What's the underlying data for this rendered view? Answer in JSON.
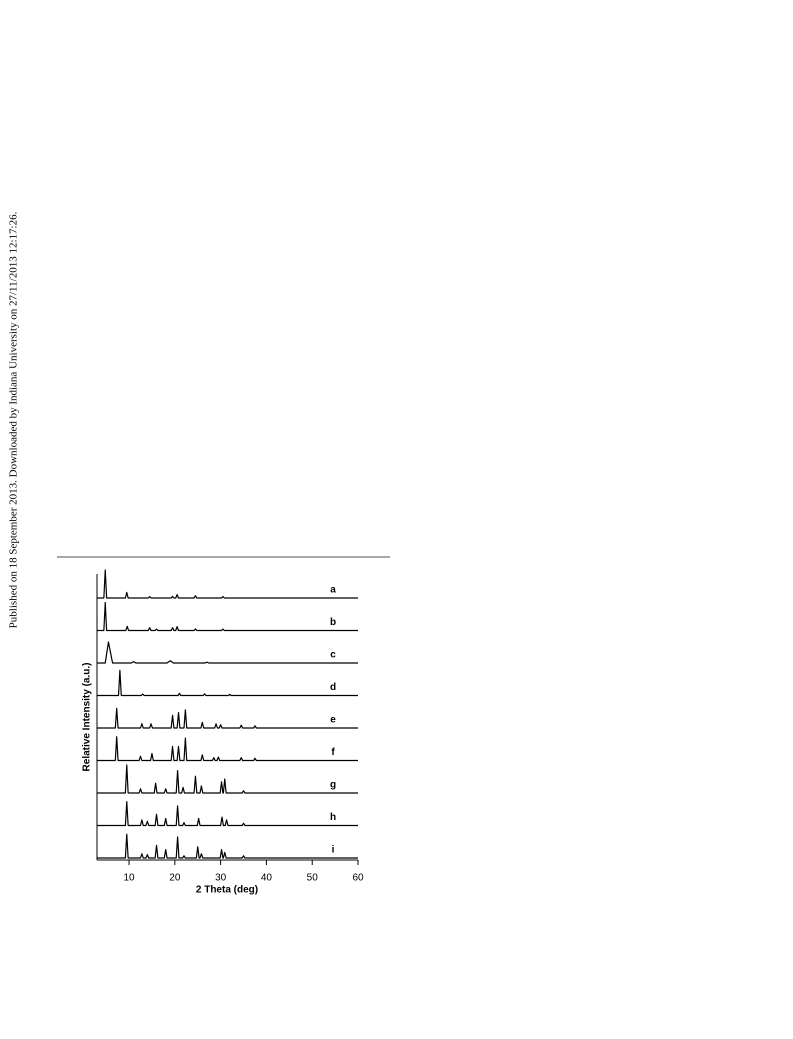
{
  "side_note": "Published on 18 September 2013. Downloaded by Indiana University on 27/11/2013 12:17:26.",
  "chart_data": {
    "type": "line",
    "x_label": "2 Theta (deg)",
    "y_label": "Relative Intensity (a.u.)",
    "xlim": [
      3,
      60
    ],
    "xticks": [
      10,
      20,
      30,
      40,
      50,
      60
    ],
    "color": "#000000",
    "series": [
      {
        "name": "a",
        "x": [
          3,
          4.5,
          4.8,
          5.1,
          9.2,
          9.5,
          9.8,
          14.2,
          14.5,
          14.8,
          19.2,
          19.5,
          19.8,
          20.2,
          20.5,
          20.8,
          24.2,
          24.5,
          24.8,
          30.2,
          30.5,
          30.8,
          60
        ],
        "values": [
          0,
          0,
          100,
          0,
          0,
          20,
          0,
          0,
          5,
          0,
          0,
          6,
          0,
          0,
          12,
          0,
          0,
          8,
          0,
          0,
          5,
          0,
          0
        ]
      },
      {
        "name": "b",
        "x": [
          3,
          4.5,
          4.8,
          5.1,
          9.3,
          9.6,
          9.9,
          14.2,
          14.5,
          14.8,
          15.7,
          16,
          16.3,
          19.2,
          19.5,
          19.8,
          20.2,
          20.5,
          20.8,
          24.2,
          24.5,
          24.8,
          30.2,
          30.5,
          30.8,
          60
        ],
        "values": [
          0,
          0,
          100,
          0,
          0,
          15,
          0,
          0,
          10,
          0,
          0,
          5,
          0,
          0,
          10,
          0,
          0,
          14,
          0,
          0,
          6,
          0,
          0,
          5,
          0,
          0
        ]
      },
      {
        "name": "c",
        "x": [
          3,
          4.8,
          5.5,
          6.4,
          10.5,
          11,
          11.5,
          18.3,
          19,
          19.7,
          26.6,
          27,
          27.4,
          60
        ],
        "values": [
          0,
          0,
          75,
          0,
          0,
          5,
          0,
          0,
          8,
          0,
          0,
          3,
          0,
          0
        ]
      },
      {
        "name": "d",
        "x": [
          3,
          7.7,
          8,
          8.3,
          12.7,
          13,
          13.3,
          20.7,
          21,
          21.3,
          26.2,
          26.5,
          26.8,
          31.7,
          32,
          32.3,
          60
        ],
        "values": [
          0,
          0,
          90,
          0,
          0,
          5,
          0,
          0,
          8,
          0,
          0,
          6,
          0,
          0,
          4,
          0,
          0
        ]
      },
      {
        "name": "e",
        "x": [
          3,
          7,
          7.3,
          7.6,
          12.5,
          12.8,
          13.1,
          14.5,
          14.8,
          15.1,
          19.2,
          19.5,
          19.8,
          20.5,
          20.8,
          21.1,
          22,
          22.3,
          22.6,
          25.7,
          26,
          26.3,
          28.7,
          29,
          29.3,
          29.7,
          30,
          30.3,
          34.2,
          34.5,
          34.8,
          37.2,
          37.5,
          37.8,
          60
        ],
        "values": [
          0,
          0,
          70,
          0,
          0,
          15,
          0,
          0,
          15,
          0,
          0,
          45,
          0,
          0,
          55,
          0,
          0,
          65,
          0,
          0,
          20,
          0,
          0,
          15,
          0,
          0,
          12,
          0,
          0,
          10,
          0,
          0,
          8,
          0,
          0
        ]
      },
      {
        "name": "f",
        "x": [
          3,
          7,
          7.3,
          7.6,
          12.2,
          12.5,
          12.8,
          14.7,
          15,
          15.3,
          19.2,
          19.5,
          19.8,
          20.5,
          20.8,
          21.1,
          22,
          22.3,
          22.6,
          25.7,
          26,
          26.3,
          28.2,
          28.5,
          28.8,
          29.2,
          29.5,
          29.8,
          34.2,
          34.5,
          34.8,
          37.2,
          37.5,
          37.8,
          60
        ],
        "values": [
          0,
          0,
          85,
          0,
          0,
          15,
          0,
          0,
          25,
          0,
          0,
          50,
          0,
          0,
          50,
          0,
          0,
          80,
          0,
          0,
          20,
          0,
          0,
          10,
          0,
          0,
          12,
          0,
          0,
          10,
          0,
          0,
          8,
          0,
          0
        ]
      },
      {
        "name": "g",
        "x": [
          3,
          9.2,
          9.5,
          9.8,
          12.2,
          12.5,
          12.8,
          15.5,
          15.8,
          16.1,
          17.7,
          18,
          18.3,
          20.3,
          20.6,
          20.9,
          21.5,
          21.8,
          22.1,
          24.2,
          24.5,
          24.8,
          25.5,
          25.8,
          26.1,
          29.9,
          30.2,
          30.5,
          30.6,
          30.9,
          31.2,
          34.7,
          35,
          35.3,
          60
        ],
        "values": [
          0,
          0,
          100,
          0,
          0,
          15,
          0,
          0,
          35,
          0,
          0,
          15,
          0,
          0,
          80,
          0,
          0,
          20,
          0,
          0,
          60,
          0,
          0,
          25,
          0,
          0,
          40,
          0,
          0,
          50,
          0,
          0,
          8,
          0,
          0
        ]
      },
      {
        "name": "h",
        "x": [
          3,
          9.2,
          9.5,
          9.8,
          12.5,
          12.8,
          13.1,
          13.7,
          14,
          14.3,
          15.7,
          16,
          16.3,
          17.7,
          18,
          18.3,
          20.3,
          20.6,
          20.9,
          21.7,
          22,
          22.3,
          24.9,
          25.2,
          25.5,
          30,
          30.3,
          30.6,
          31,
          31.3,
          31.6,
          34.7,
          35,
          35.3,
          60
        ],
        "values": [
          0,
          0,
          85,
          0,
          0,
          20,
          0,
          0,
          15,
          0,
          0,
          40,
          0,
          0,
          25,
          0,
          0,
          70,
          0,
          0,
          10,
          0,
          0,
          25,
          0,
          0,
          30,
          0,
          0,
          20,
          0,
          0,
          8,
          0,
          0
        ]
      },
      {
        "name": "i",
        "x": [
          3,
          9.2,
          9.5,
          9.8,
          12.5,
          12.8,
          13.1,
          13.7,
          14,
          14.3,
          15.7,
          16,
          16.3,
          17.7,
          18,
          18.3,
          20.3,
          20.6,
          20.9,
          21.7,
          22,
          22.3,
          24.7,
          25,
          25.3,
          25.5,
          25.8,
          26.1,
          29.9,
          30.2,
          30.5,
          30.6,
          30.9,
          31.2,
          34.7,
          35,
          35.3,
          60
        ],
        "values": [
          0,
          0,
          85,
          0,
          0,
          15,
          0,
          0,
          12,
          0,
          0,
          45,
          0,
          0,
          30,
          0,
          0,
          75,
          0,
          0,
          8,
          0,
          0,
          40,
          0,
          0,
          15,
          0,
          0,
          30,
          0,
          0,
          20,
          0,
          0,
          8,
          0,
          0
        ]
      }
    ]
  }
}
